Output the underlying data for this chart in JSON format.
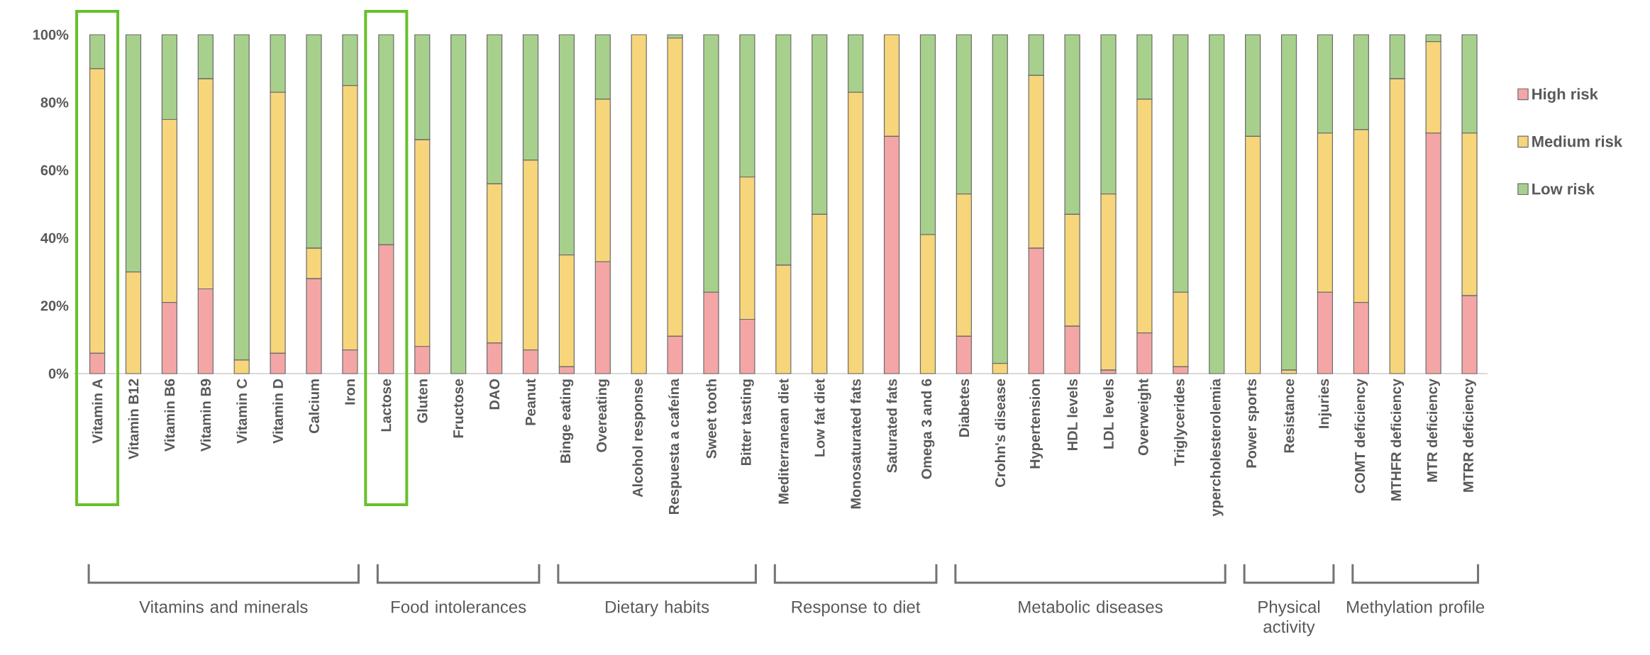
{
  "chart_data": {
    "type": "bar",
    "stacked": true,
    "legend": "right",
    "categories": [
      "Vitamin A",
      "Vitamin B12",
      "Vitamin B6",
      "Vitamin B9",
      "Vitamin C",
      "Vitamin D",
      "Calcium",
      "Iron",
      "Lactose",
      "Gluten",
      "Fructose",
      "DAO",
      "Peanut",
      "Binge eating",
      "Overeating",
      "Alcohol response",
      "Respuesta a cafeína",
      "Sweet tooth",
      "Bitter tasting",
      "Mediterranean diet",
      "Low fat diet",
      "Monosaturated fats",
      "Saturated fats",
      "Omega 3 and 6",
      "Diabetes",
      "Crohn's disease",
      "Hypertension",
      "HDL levels",
      "LDL levels",
      "Overweight",
      "Triglycerides",
      "ypercholesterolemia",
      "Power sports",
      "Resistance",
      "Injuries",
      "COMT deficiency",
      "MTHFR deficiency",
      "MTR deficiency",
      "MTRR deficiency"
    ],
    "series": [
      {
        "name": "High risk",
        "color": "#f4a6a6",
        "values": [
          6,
          0,
          21,
          25,
          0,
          6,
          28,
          7,
          38,
          8,
          0,
          9,
          7,
          2,
          33,
          0,
          11,
          24,
          16,
          0,
          0,
          0,
          70,
          0,
          11,
          0,
          37,
          14,
          1,
          12,
          2,
          0,
          0,
          0,
          24,
          21,
          0,
          71,
          23
        ]
      },
      {
        "name": "Medium risk",
        "color": "#f7d57a",
        "values": [
          84,
          30,
          54,
          62,
          4,
          77,
          9,
          78,
          0,
          61,
          0,
          47,
          56,
          33,
          48,
          100,
          88,
          0,
          42,
          32,
          47,
          83,
          30,
          41,
          42,
          3,
          51,
          33,
          52,
          69,
          22,
          0,
          70,
          1,
          47,
          51,
          87,
          27,
          48
        ]
      },
      {
        "name": "Low risk",
        "color": "#a8d08d",
        "values": [
          10,
          70,
          25,
          13,
          96,
          17,
          63,
          15,
          62,
          31,
          100,
          44,
          37,
          65,
          19,
          0,
          1,
          76,
          42,
          68,
          53,
          17,
          0,
          59,
          47,
          97,
          12,
          53,
          47,
          19,
          76,
          100,
          30,
          99,
          29,
          28,
          13,
          2,
          29
        ]
      }
    ],
    "ylim": [
      0,
      100
    ],
    "yticks": [
      {
        "value": 0,
        "label": "0%"
      },
      {
        "value": 20,
        "label": "20%"
      },
      {
        "value": 40,
        "label": "40%"
      },
      {
        "value": 60,
        "label": "60%"
      },
      {
        "value": 80,
        "label": "80%"
      },
      {
        "value": 100,
        "label": "100%"
      }
    ],
    "annotations": [
      "Vitamins and minerals",
      "Food intolerances",
      "Dietary habits",
      "Response to diet",
      "Metabolic diseases",
      "Physical activity",
      "Methylation profile"
    ]
  }
}
